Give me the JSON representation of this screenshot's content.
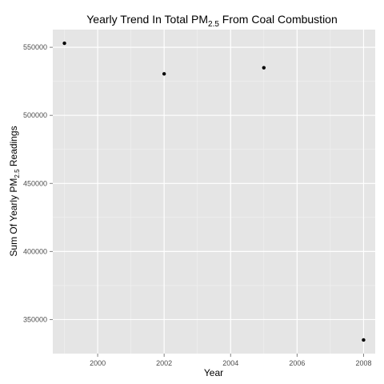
{
  "chart_data": {
    "type": "scatter",
    "title": {
      "main": "Yearly Trend In Total PM",
      "sub": "2.5",
      "tail": " From Coal Combustion"
    },
    "xlabel": "Year",
    "ylabel": {
      "main": "Sum Of Yearly PM",
      "sub": "2.5",
      "tail": " Readings"
    },
    "x": [
      1999,
      2002,
      2005,
      2008
    ],
    "y": [
      553000,
      530500,
      535000,
      335000
    ],
    "xlim": [
      1998.65,
      2008.35
    ],
    "ylim": [
      325000,
      563000
    ],
    "x_ticks": [
      2000,
      2002,
      2004,
      2006,
      2008
    ],
    "x_tick_labels": [
      "2000",
      "2002",
      "2004",
      "2006",
      "2008"
    ],
    "y_ticks": [
      350000,
      400000,
      450000,
      500000,
      550000
    ],
    "y_tick_labels": [
      "350000",
      "400000",
      "450000",
      "500000",
      "550000"
    ],
    "grid": true,
    "legend": "none",
    "colors": {
      "panel": "#e5e5e5",
      "grid_major": "#ffffff",
      "grid_minor": "#f2f2f2",
      "point": "#000000",
      "tick": "#7f7f7f"
    }
  }
}
